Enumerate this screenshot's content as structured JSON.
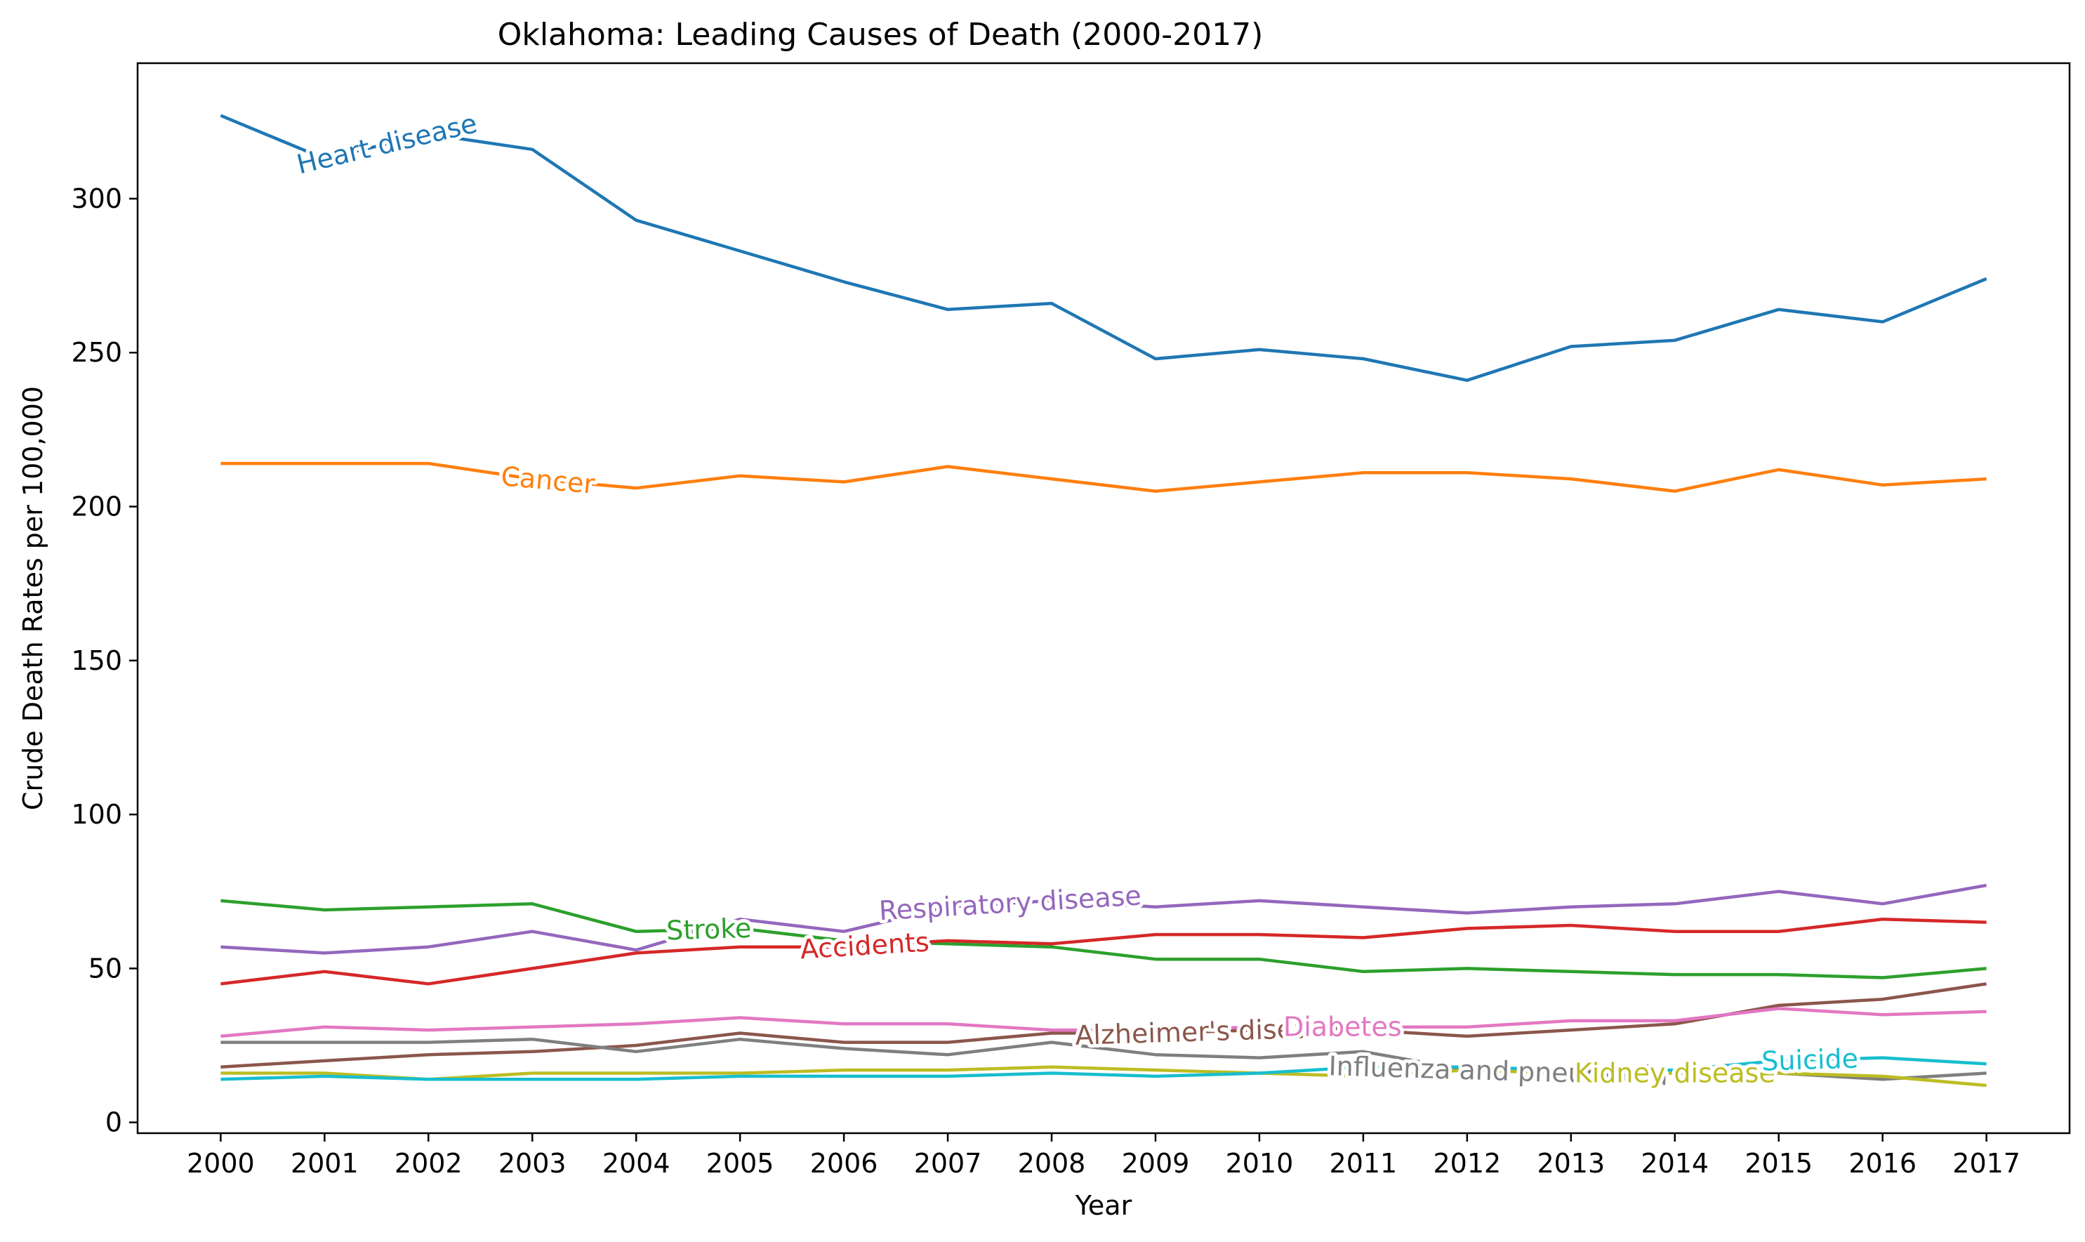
{
  "chart_data": {
    "type": "line",
    "title": "Oklahoma: Leading Causes of Death (2000-2017)",
    "xlabel": "Year",
    "ylabel": "Crude Death Rates per 100,000",
    "x": [
      2000,
      2001,
      2002,
      2003,
      2004,
      2005,
      2006,
      2007,
      2008,
      2009,
      2010,
      2011,
      2012,
      2013,
      2014,
      2015,
      2016,
      2017
    ],
    "xlim": [
      1999.2,
      2017.8
    ],
    "ylim": [
      -3.5,
      344
    ],
    "yticks": [
      0,
      50,
      100,
      150,
      200,
      250,
      300
    ],
    "grid": false,
    "legend": "inline labels",
    "series": [
      {
        "name": "Heart disease",
        "color": "#1f77b4",
        "label_year": 2001.6,
        "values": [
          327,
          313,
          321,
          316,
          293,
          283,
          273,
          264,
          266,
          248,
          251,
          248,
          241,
          252,
          254,
          264,
          260,
          274
        ]
      },
      {
        "name": "Cancer",
        "color": "#ff7f0e",
        "label_year": 2003.15,
        "values": [
          214,
          214,
          214,
          209,
          206,
          210,
          208,
          213,
          209,
          205,
          208,
          211,
          211,
          209,
          205,
          212,
          207,
          209
        ]
      },
      {
        "name": "Stroke",
        "color": "#2ca02c",
        "label_year": 2004.7,
        "values": [
          72,
          69,
          70,
          71,
          62,
          63,
          59,
          58,
          57,
          53,
          53,
          49,
          50,
          49,
          48,
          48,
          47,
          50
        ]
      },
      {
        "name": "Accidents",
        "color": "#d62728",
        "label_year": 2006.2,
        "values": [
          45,
          49,
          45,
          50,
          55,
          57,
          57,
          59,
          58,
          61,
          61,
          60,
          63,
          64,
          62,
          62,
          66,
          65
        ]
      },
      {
        "name": "Respiratory disease",
        "color": "#9467bd",
        "label_year": 2007.6,
        "values": [
          57,
          55,
          57,
          62,
          56,
          66,
          62,
          70,
          72,
          70,
          72,
          70,
          68,
          70,
          71,
          75,
          71,
          77
        ]
      },
      {
        "name": "Alzheimer's disease",
        "color": "#8c564b",
        "label_year": 2009.5,
        "values": [
          18,
          20,
          22,
          23,
          25,
          29,
          26,
          26,
          29,
          29,
          30,
          30,
          28,
          30,
          32,
          38,
          40,
          45
        ]
      },
      {
        "name": "Diabetes",
        "color": "#e377c2",
        "label_year": 2010.8,
        "values": [
          28,
          31,
          30,
          31,
          32,
          34,
          32,
          32,
          30,
          30,
          31,
          31,
          31,
          33,
          33,
          37,
          35,
          36
        ]
      },
      {
        "name": "Influenza and pneumonia",
        "color": "#7f7f7f",
        "label_year": 2012.3,
        "values": [
          26,
          26,
          26,
          27,
          23,
          27,
          24,
          22,
          26,
          22,
          21,
          23,
          17,
          16,
          16,
          16,
          14,
          16
        ]
      },
      {
        "name": "Kidney disease",
        "color": "#bcbd22",
        "label_year": 2014.0,
        "values": [
          16,
          16,
          14,
          16,
          16,
          16,
          17,
          17,
          18,
          17,
          16,
          15,
          17,
          16,
          16,
          16,
          15,
          12
        ]
      },
      {
        "name": "Suicide",
        "color": "#17becf",
        "label_year": 2015.3,
        "values": [
          14,
          15,
          14,
          14,
          14,
          15,
          15,
          15,
          16,
          15,
          16,
          18,
          18,
          17,
          17,
          20,
          21,
          19
        ]
      }
    ]
  }
}
